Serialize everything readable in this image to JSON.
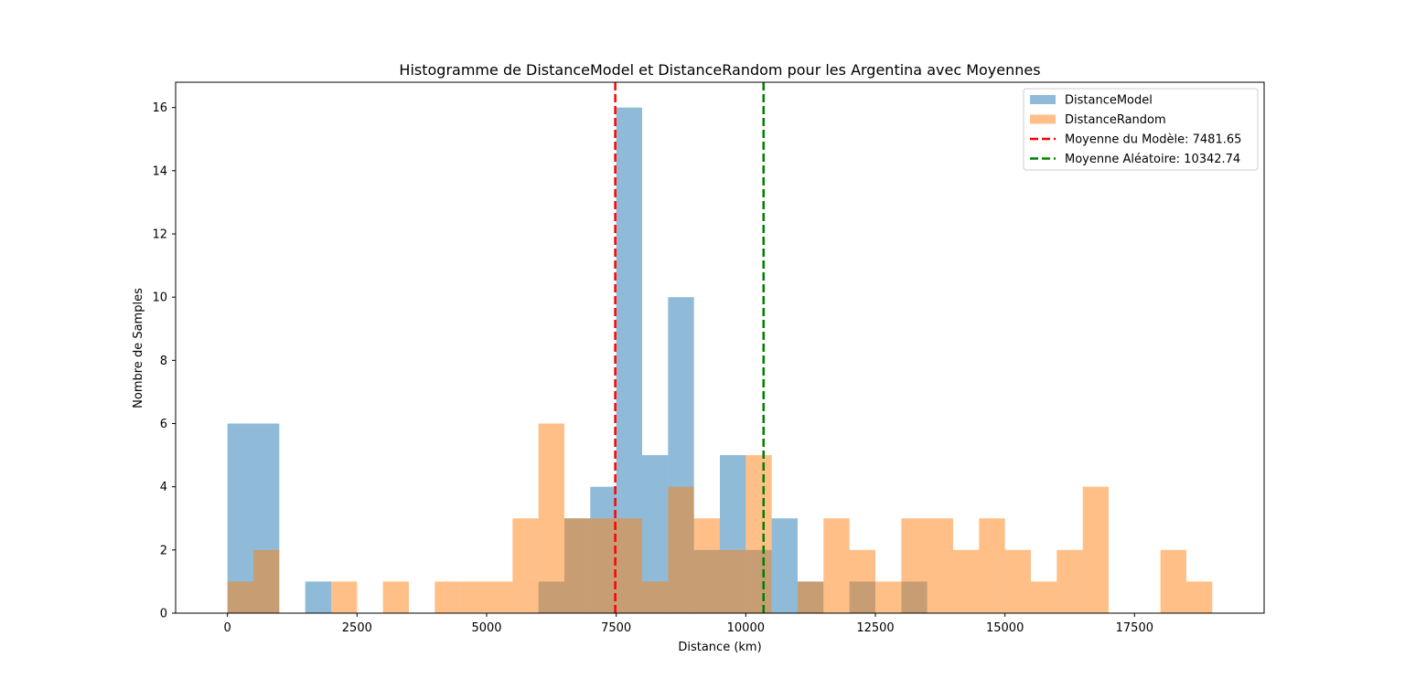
{
  "chart_data": {
    "type": "bar",
    "title": "Histogramme de DistanceModel et DistanceRandom pour les Argentina avec Moyennes",
    "xlabel": "Distance (km)",
    "ylabel": "Nombre de Samples",
    "xlim": [
      -1000,
      20000
    ],
    "ylim": [
      0,
      16.8
    ],
    "x_ticks": [
      0,
      2500,
      5000,
      7500,
      10000,
      12500,
      15000,
      17500
    ],
    "x_tick_labels": [
      "0",
      "2500",
      "5000",
      "7500",
      "10000",
      "12500",
      "15000",
      "17500"
    ],
    "y_ticks": [
      0,
      2,
      4,
      6,
      8,
      10,
      12,
      14,
      16
    ],
    "y_tick_labels": [
      "0",
      "2",
      "4",
      "6",
      "8",
      "10",
      "12",
      "14",
      "16"
    ],
    "grid": false,
    "legend_position": "top-right",
    "bin_edges": [
      0,
      500,
      1000,
      1500,
      2000,
      2500,
      3000,
      3500,
      4000,
      4500,
      5000,
      5500,
      6000,
      6500,
      7000,
      7500,
      8000,
      8500,
      9000,
      9500,
      10000,
      10500,
      11000,
      11500,
      12000,
      12500,
      13000,
      13500,
      14000,
      14500,
      15000,
      15500,
      16000,
      16500,
      17000,
      17500,
      18000,
      18500,
      19000
    ],
    "series": [
      {
        "name": "DistanceModel",
        "color": "#1f77b4",
        "opacity": 0.5,
        "values": [
          6,
          6,
          0,
          1,
          0,
          0,
          0,
          0,
          0,
          0,
          0,
          0,
          1,
          3,
          4,
          16,
          5,
          10,
          2,
          5,
          2,
          3,
          1,
          0,
          1,
          0,
          1,
          0,
          0,
          0,
          0,
          0,
          0,
          0,
          0,
          0,
          0,
          0
        ]
      },
      {
        "name": "DistanceRandom",
        "color": "#ff7f0e",
        "opacity": 0.5,
        "values": [
          1,
          2,
          0,
          0,
          1,
          0,
          1,
          0,
          1,
          1,
          1,
          3,
          6,
          3,
          3,
          3,
          1,
          4,
          3,
          2,
          5,
          0,
          1,
          3,
          2,
          1,
          3,
          3,
          2,
          3,
          2,
          1,
          2,
          4,
          0,
          0,
          2,
          1
        ]
      }
    ],
    "mean_lines": [
      {
        "name": "Moyenne du Modèle: 7481.65",
        "value": 7481.65,
        "color": "#ff0000"
      },
      {
        "name": "Moyenne Aléatoire: 10342.74",
        "value": 10342.74,
        "color": "#008000"
      }
    ]
  }
}
